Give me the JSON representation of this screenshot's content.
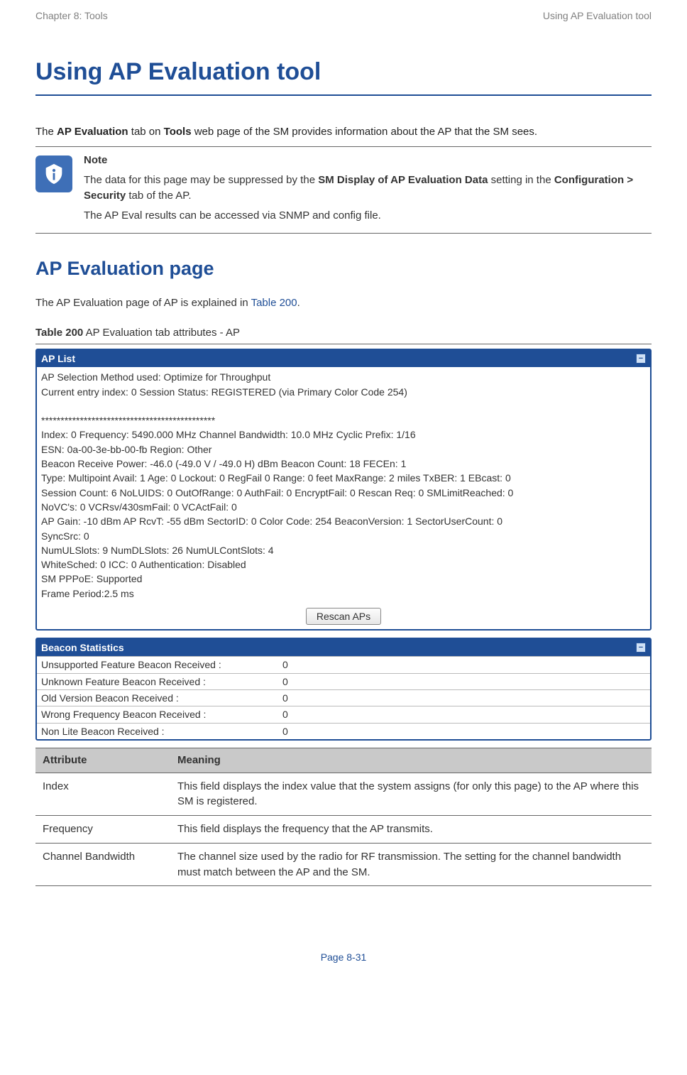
{
  "header": {
    "left": "Chapter 8:  Tools",
    "right": "Using AP Evaluation tool"
  },
  "main_title": "Using AP Evaluation tool",
  "intro_parts": {
    "p1": "The ",
    "b1": "AP Evaluation",
    "p2": " tab on ",
    "b2": "Tools",
    "p3": " web page of the SM provides information about the AP that the SM sees."
  },
  "note": {
    "label": "Note",
    "l1a": "The data for this page may be suppressed by the ",
    "l1b": "SM Display of AP Evaluation Data",
    "l1c": " setting in the ",
    "l1d": "Configuration > Security",
    "l1e": " tab of the AP.",
    "l2": "The AP Eval results can be accessed via SNMP and config file."
  },
  "sub_title": "AP Evaluation page",
  "sub_intro": {
    "a": "The AP Evaluation page of AP is explained in ",
    "link": "Table 200",
    "b": "."
  },
  "table_caption": {
    "b": "Table 200",
    "rest": " AP Evaluation tab attributes - AP"
  },
  "ap_list_panel": {
    "title": "AP List",
    "lines": [
      "AP Selection Method used: Optimize for Throughput",
      "Current entry index: 0 Session Status: REGISTERED (via Primary Color Code 254)",
      "",
      "*********************************************",
      "Index: 0 Frequency: 5490.000 MHz  Channel Bandwidth: 10.0 MHz  Cyclic Prefix: 1/16",
      "ESN: 0a-00-3e-bb-00-fb Region: Other",
      "Beacon Receive Power: -46.0 (-49.0 V / -49.0 H) dBm Beacon Count: 18 FECEn: 1",
      "Type: Multipoint Avail: 1 Age: 0 Lockout: 0 RegFail 0 Range: 0 feet MaxRange: 2 miles TxBER: 1 EBcast: 0",
      "Session Count: 6 NoLUIDS: 0 OutOfRange: 0 AuthFail: 0 EncryptFail: 0 Rescan Req: 0 SMLimitReached: 0",
      "NoVC's: 0 VCRsv/430smFail: 0 VCActFail: 0",
      "AP Gain: -10 dBm AP RcvT: -55 dBm SectorID: 0 Color Code: 254 BeaconVersion: 1 SectorUserCount: 0",
      "SyncSrc: 0",
      "NumULSlots: 9 NumDLSlots: 26 NumULContSlots: 4",
      "WhiteSched: 0 ICC: 0 Authentication: Disabled",
      "SM PPPoE: Supported",
      "Frame Period:2.5 ms"
    ],
    "button": "Rescan APs"
  },
  "beacon_stats": {
    "title": "Beacon Statistics",
    "rows": [
      {
        "label": "Unsupported Feature Beacon Received :",
        "value": "0"
      },
      {
        "label": "Unknown Feature Beacon Received :",
        "value": "0"
      },
      {
        "label": "Old Version Beacon Received :",
        "value": "0"
      },
      {
        "label": "Wrong Frequency Beacon Received :",
        "value": "0"
      },
      {
        "label": "Non Lite Beacon Received :",
        "value": "0"
      }
    ]
  },
  "attr_table": {
    "head": {
      "c1": "Attribute",
      "c2": "Meaning"
    },
    "rows": [
      {
        "attr": "Index",
        "meaning": "This field displays the index value that the system assigns (for only this page) to the AP where this SM is registered."
      },
      {
        "attr": "Frequency",
        "meaning": "This field displays the frequency that the AP transmits."
      },
      {
        "attr": "Channel Bandwidth",
        "meaning": "The channel size used by the radio for RF transmission. The setting for the channel bandwidth must match between the AP and the SM."
      }
    ]
  },
  "footer": "Page 8-31"
}
